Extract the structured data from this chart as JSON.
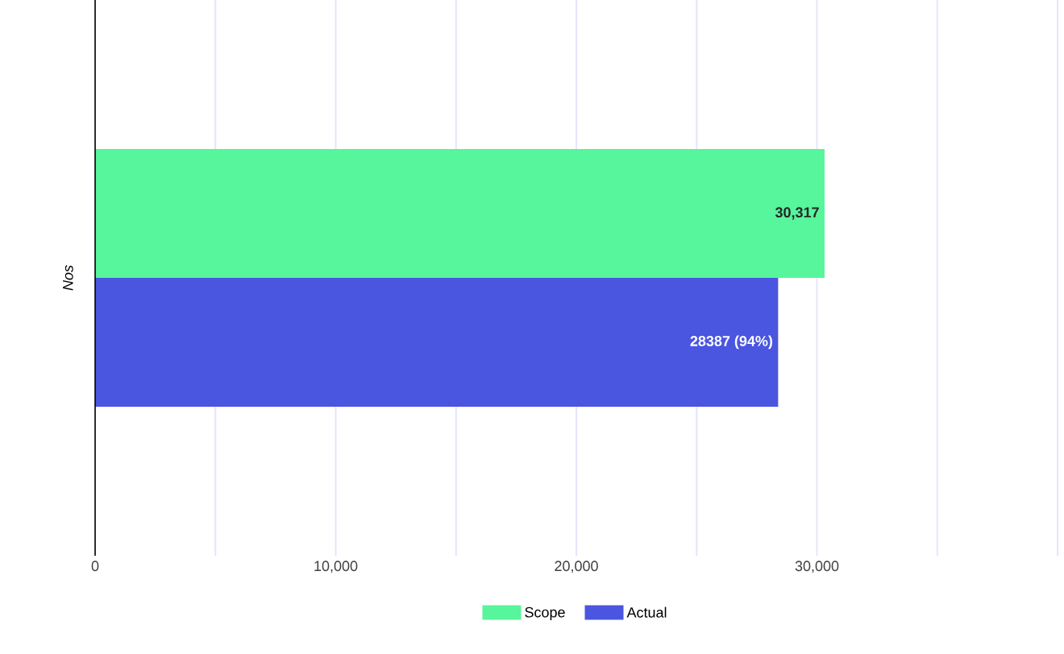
{
  "chart_data": {
    "type": "bar",
    "orientation": "horizontal",
    "ylabel": "Nos",
    "categories": [
      null
    ],
    "series": [
      {
        "name": "Scope",
        "color": "#57f59c",
        "values": [
          30317
        ],
        "value_labels": [
          "30,317"
        ]
      },
      {
        "name": "Actual",
        "color": "#4a55e0",
        "values": [
          28387
        ],
        "value_labels": [
          "28387 (94%)"
        ]
      }
    ],
    "xlim": [
      0,
      40000
    ],
    "xticks": [
      0,
      {
        "value": 5000,
        "label": null
      },
      {
        "value": 10000,
        "label": "10,000"
      },
      {
        "value": 15000,
        "label": null
      },
      {
        "value": 20000,
        "label": "20,000"
      },
      {
        "value": 25000,
        "label": null
      },
      {
        "value": 30000,
        "label": "30,000"
      },
      {
        "value": 35000,
        "label": null
      },
      {
        "value": 40000,
        "label": null
      }
    ],
    "grid": "x",
    "legend": "bottom",
    "tick_labels": "x"
  }
}
